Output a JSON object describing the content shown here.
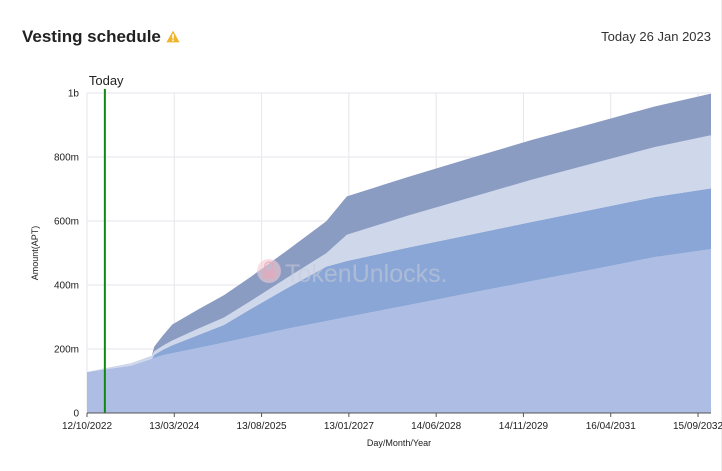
{
  "header": {
    "title": "Vesting schedule",
    "warning_icon": "warning-triangle-icon",
    "today_text": "Today 26 Jan 2023"
  },
  "watermark": {
    "text": "TokenUnlocks."
  },
  "colors": {
    "band_bottom": "#aebde3",
    "band_second": "#8aa6d6",
    "band_third": "#cfd7ea",
    "band_top": "#8b9cc3",
    "today_line": "#118811",
    "grid": "#e6e6ec"
  },
  "chart_data": {
    "type": "area",
    "stacked": true,
    "x_unit": "date",
    "xlabel": "Day/Month/Year",
    "ylabel": "Amount(APT)",
    "x_range": [
      "2022-10-12",
      "2032-12-01"
    ],
    "y_range": [
      0,
      1000
    ],
    "y_unit": "millions",
    "x_ticks": [
      "12/10/2022",
      "13/03/2024",
      "13/08/2025",
      "13/01/2027",
      "14/06/2028",
      "14/11/2029",
      "16/04/2031",
      "15/09/2032"
    ],
    "y_ticks": [
      "0",
      "200m",
      "400m",
      "600m",
      "800m",
      "1b"
    ],
    "grid": true,
    "legend": "none",
    "today_marker": {
      "label": "Today",
      "date": "2023-01-26"
    },
    "series": [
      {
        "color": "#aebde3",
        "points": [
          [
            "2022-10-12",
            128
          ],
          [
            "2023-07-01",
            148
          ],
          [
            "2024-01-01",
            180
          ],
          [
            "2025-01-01",
            220
          ],
          [
            "2026-01-01",
            262
          ],
          [
            "2027-01-01",
            300
          ],
          [
            "2028-01-01",
            337
          ],
          [
            "2029-01-01",
            375
          ],
          [
            "2030-01-01",
            412
          ],
          [
            "2031-01-01",
            449
          ],
          [
            "2032-01-01",
            487
          ],
          [
            "2032-12-01",
            512
          ]
        ]
      },
      {
        "color": "#8aa6d6",
        "points": [
          [
            "2022-10-12",
            0
          ],
          [
            "2023-11-01",
            0
          ],
          [
            "2023-11-15",
            10
          ],
          [
            "2024-03-01",
            25
          ],
          [
            "2024-08-01",
            40
          ],
          [
            "2025-01-01",
            55
          ],
          [
            "2025-06-01",
            85
          ],
          [
            "2026-01-01",
            125
          ],
          [
            "2026-09-01",
            170
          ],
          [
            "2027-01-01",
            175
          ],
          [
            "2028-01-01",
            180
          ],
          [
            "2029-01-01",
            182
          ],
          [
            "2030-01-01",
            185
          ],
          [
            "2031-01-01",
            187
          ],
          [
            "2032-01-01",
            188
          ],
          [
            "2032-12-01",
            190
          ]
        ]
      },
      {
        "color": "#cfd7ea",
        "points": [
          [
            "2022-10-12",
            0
          ],
          [
            "2023-01-01",
            3
          ],
          [
            "2023-07-01",
            8
          ],
          [
            "2023-11-01",
            10
          ],
          [
            "2024-03-01",
            15
          ],
          [
            "2024-08-01",
            20
          ],
          [
            "2025-01-01",
            23
          ],
          [
            "2025-06-01",
            25
          ],
          [
            "2026-01-01",
            32
          ],
          [
            "2026-09-01",
            42
          ],
          [
            "2027-01-01",
            82
          ],
          [
            "2028-01-01",
            100
          ],
          [
            "2029-01-01",
            116
          ],
          [
            "2030-01-01",
            132
          ],
          [
            "2031-01-01",
            144
          ],
          [
            "2032-01-01",
            156
          ],
          [
            "2032-12-01",
            166
          ]
        ]
      },
      {
        "color": "#8b9cc3",
        "points": [
          [
            "2022-10-12",
            0
          ],
          [
            "2023-11-01",
            0
          ],
          [
            "2023-11-15",
            15
          ],
          [
            "2024-03-01",
            50
          ],
          [
            "2024-08-01",
            60
          ],
          [
            "2025-01-01",
            70
          ],
          [
            "2025-06-01",
            75
          ],
          [
            "2026-01-01",
            85
          ],
          [
            "2026-09-01",
            100
          ],
          [
            "2027-01-01",
            120
          ],
          [
            "2028-01-01",
            121
          ],
          [
            "2029-01-01",
            123
          ],
          [
            "2030-01-01",
            124
          ],
          [
            "2031-01-01",
            125
          ],
          [
            "2032-01-01",
            127
          ],
          [
            "2032-12-01",
            130
          ]
        ]
      }
    ]
  }
}
